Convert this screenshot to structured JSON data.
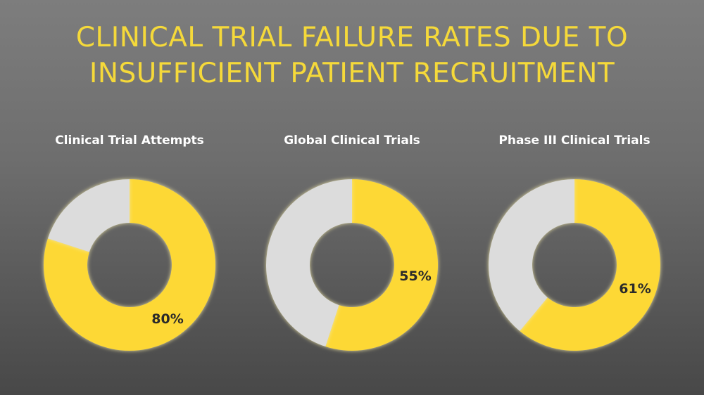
{
  "title_line1": "CLINICAL TRIAL FAILURE RATES DUE TO",
  "title_line2": "INSUFFICIENT PATIENT RECRUITMENT",
  "colors": {
    "title": "#f5d93a",
    "highlight": "#fdd835",
    "remainder": "#dcdcdc"
  },
  "chart_data": [
    {
      "type": "pie",
      "title": "Clinical Trial Attempts",
      "values": [
        80,
        20
      ],
      "data_label": "80%"
    },
    {
      "type": "pie",
      "title": "Global Clinical Trials",
      "values": [
        55,
        45
      ],
      "data_label": "55%"
    },
    {
      "type": "pie",
      "title": "Phase III Clinical Trials",
      "values": [
        61,
        39
      ],
      "data_label": "61%"
    }
  ]
}
